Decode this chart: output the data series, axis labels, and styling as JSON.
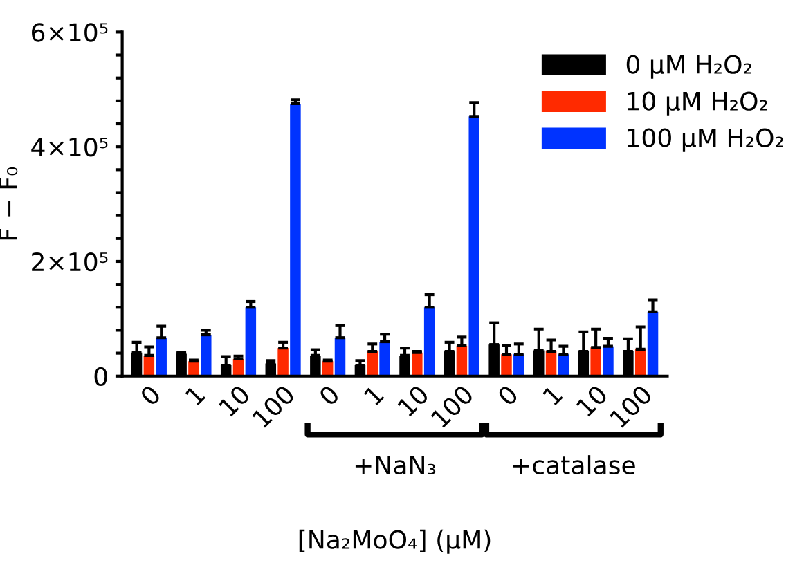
{
  "chart_data": {
    "type": "bar",
    "xlabel": "[Na₂MoO₄] (μM)",
    "ylabel": "F − F₀",
    "categories": [
      "0",
      "1",
      "10",
      "100",
      "0",
      "1",
      "10",
      "100",
      "0",
      "1",
      "10",
      "100"
    ],
    "series": [
      {
        "name": "0 μM H₂O₂",
        "color": "#000000",
        "values": [
          41000,
          39000,
          19000,
          22000,
          36000,
          19000,
          36000,
          43000,
          55000,
          45000,
          43000,
          43000
        ],
        "errors": [
          [
            41000,
            59000
          ],
          [
            39000,
            41000
          ],
          [
            19000,
            34000
          ],
          [
            22000,
            27000
          ],
          [
            36000,
            46000
          ],
          [
            19000,
            27000
          ],
          [
            36000,
            49000
          ],
          [
            43000,
            59000
          ],
          [
            55000,
            93000
          ],
          [
            45000,
            82000
          ],
          [
            43000,
            77000
          ],
          [
            43000,
            65000
          ]
        ]
      },
      {
        "name": "10 μM H₂O₂",
        "color": "#ff2a00",
        "values": [
          36000,
          26000,
          30000,
          49000,
          26000,
          43000,
          41000,
          53000,
          38000,
          43000,
          50000,
          47000
        ],
        "errors": [
          [
            36000,
            51000
          ],
          [
            26000,
            28000
          ],
          [
            30000,
            35000
          ],
          [
            49000,
            59000
          ],
          [
            26000,
            28000
          ],
          [
            43000,
            56000
          ],
          [
            41000,
            43000
          ],
          [
            53000,
            68000
          ],
          [
            38000,
            53000
          ],
          [
            43000,
            63000
          ],
          [
            50000,
            82000
          ],
          [
            47000,
            86000
          ]
        ]
      },
      {
        "name": "100 μM H₂O₂",
        "color": "#0033ff",
        "values": [
          67000,
          72000,
          120000,
          475000,
          67000,
          60000,
          120000,
          453000,
          38000,
          38000,
          52000,
          112000
        ],
        "errors": [
          [
            67000,
            87000
          ],
          [
            72000,
            80000
          ],
          [
            120000,
            130000
          ],
          [
            475000,
            482000
          ],
          [
            67000,
            88000
          ],
          [
            60000,
            73000
          ],
          [
            120000,
            142000
          ],
          [
            453000,
            477000
          ],
          [
            38000,
            56000
          ],
          [
            38000,
            52000
          ],
          [
            52000,
            66000
          ],
          [
            112000,
            133000
          ]
        ]
      }
    ],
    "ylim": [
      0,
      600000
    ],
    "yticks": [
      {
        "value": 0,
        "label": "0"
      },
      {
        "value": 40000,
        "label": null
      },
      {
        "value": 80000,
        "label": null
      },
      {
        "value": 120000,
        "label": null
      },
      {
        "value": 160000,
        "label": null
      },
      {
        "value": 200000,
        "label": "2×10⁵"
      },
      {
        "value": 240000,
        "label": null
      },
      {
        "value": 280000,
        "label": null
      },
      {
        "value": 320000,
        "label": null
      },
      {
        "value": 360000,
        "label": null
      },
      {
        "value": 400000,
        "label": "4×10⁵"
      },
      {
        "value": 440000,
        "label": null
      },
      {
        "value": 480000,
        "label": null
      },
      {
        "value": 520000,
        "label": null
      },
      {
        "value": 560000,
        "label": null
      },
      {
        "value": 600000,
        "label": "6×10⁵"
      }
    ],
    "annotations": [
      "+NaN₃",
      "+catalase"
    ],
    "legend": "top right",
    "grid": false
  }
}
